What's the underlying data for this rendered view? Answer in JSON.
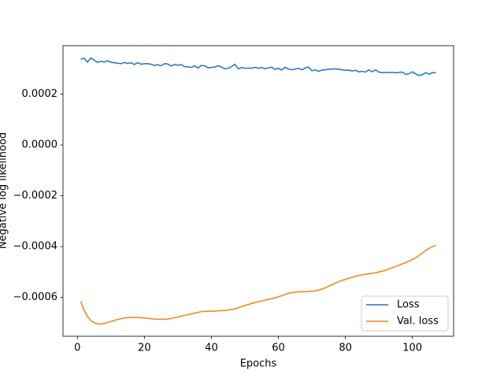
{
  "chart_data": {
    "type": "line",
    "ylabel": "Negative log likelihood",
    "xlabel": "Epochs",
    "x": [
      1,
      2,
      3,
      4,
      5,
      6,
      7,
      8,
      9,
      10,
      11,
      12,
      13,
      14,
      15,
      16,
      17,
      18,
      19,
      20,
      21,
      22,
      23,
      24,
      25,
      26,
      27,
      28,
      29,
      30,
      31,
      32,
      33,
      34,
      35,
      36,
      37,
      38,
      39,
      40,
      41,
      42,
      43,
      44,
      45,
      46,
      47,
      48,
      49,
      50,
      51,
      52,
      53,
      54,
      55,
      56,
      57,
      58,
      59,
      60,
      61,
      62,
      63,
      64,
      65,
      66,
      67,
      68,
      69,
      70,
      71,
      72,
      73,
      74,
      75,
      76,
      77,
      78,
      79,
      80,
      81,
      82,
      83,
      84,
      85,
      86,
      87,
      88,
      89,
      90,
      91,
      92,
      93,
      94,
      95,
      96,
      97,
      98,
      99,
      100,
      101,
      102,
      103,
      104,
      105,
      106,
      107
    ],
    "series": [
      {
        "name": "Loss",
        "color": "#1f77b4",
        "values": [
          0.000338,
          0.000342,
          0.000326,
          0.000343,
          0.000334,
          0.000325,
          0.00033,
          0.000326,
          0.000332,
          0.000326,
          0.000324,
          0.000322,
          0.00032,
          0.000325,
          0.000321,
          0.000324,
          0.000317,
          0.000324,
          0.000318,
          0.00032,
          0.00032,
          0.000318,
          0.000313,
          0.000316,
          0.000312,
          0.00032,
          0.000319,
          0.000311,
          0.000317,
          0.000314,
          0.000317,
          0.000308,
          0.000308,
          0.000305,
          0.000312,
          0.000303,
          0.000313,
          0.000312,
          0.000304,
          0.000305,
          0.000307,
          0.000312,
          0.000307,
          0.0003,
          0.000302,
          0.000308,
          0.000318,
          0.0003,
          0.000305,
          0.000302,
          0.000303,
          0.000302,
          0.000306,
          0.000302,
          0.000305,
          0.0003,
          0.000304,
          0.000306,
          0.000298,
          0.000302,
          0.000295,
          0.000306,
          0.000299,
          0.000296,
          0.000299,
          0.000302,
          0.000296,
          0.000303,
          0.000307,
          0.000292,
          0.000296,
          0.00029,
          0.000295,
          0.000296,
          0.000298,
          0.000299,
          0.0003,
          0.000298,
          0.000296,
          0.000294,
          0.000295,
          0.000291,
          0.000294,
          0.000288,
          0.00029,
          0.000287,
          0.000296,
          0.000288,
          0.000296,
          0.000287,
          0.000285,
          0.000286,
          0.000285,
          0.000286,
          0.000284,
          0.000286,
          0.000287,
          0.000278,
          0.000281,
          0.000288,
          0.00028,
          0.000273,
          0.000277,
          0.000285,
          0.000279,
          0.000285,
          0.000284
        ]
      },
      {
        "name": "Val. loss",
        "color": "#ff7f0e",
        "values": [
          -0.000615,
          -0.00065,
          -0.000675,
          -0.000691,
          -0.0007,
          -0.000704,
          -0.000705,
          -0.000703,
          -0.000699,
          -0.000695,
          -0.000691,
          -0.000687,
          -0.000684,
          -0.000681,
          -0.00068,
          -0.000679,
          -0.000679,
          -0.000679,
          -0.00068,
          -0.000681,
          -0.000682,
          -0.000684,
          -0.000685,
          -0.000686,
          -0.000686,
          -0.000686,
          -0.000685,
          -0.000683,
          -0.00068,
          -0.000677,
          -0.000674,
          -0.000671,
          -0.000668,
          -0.000665,
          -0.000662,
          -0.000659,
          -0.000656,
          -0.000655,
          -0.000655,
          -0.000654,
          -0.000654,
          -0.000653,
          -0.000652,
          -0.000651,
          -0.00065,
          -0.000648,
          -0.000645,
          -0.000641,
          -0.000636,
          -0.000632,
          -0.000628,
          -0.000624,
          -0.00062,
          -0.000617,
          -0.000614,
          -0.000611,
          -0.000608,
          -0.000605,
          -0.000602,
          -0.000598,
          -0.000593,
          -0.000588,
          -0.000584,
          -0.000581,
          -0.000579,
          -0.000578,
          -0.000578,
          -0.000578,
          -0.000577,
          -0.000576,
          -0.000574,
          -0.000571,
          -0.000567,
          -0.000562,
          -0.000556,
          -0.00055,
          -0.000544,
          -0.000538,
          -0.000533,
          -0.000529,
          -0.000525,
          -0.000521,
          -0.000517,
          -0.000514,
          -0.000511,
          -0.000509,
          -0.000507,
          -0.000505,
          -0.000503,
          -0.0005,
          -0.000497,
          -0.000493,
          -0.000488,
          -0.000483,
          -0.000478,
          -0.000473,
          -0.000468,
          -0.000463,
          -0.000457,
          -0.000451,
          -0.000444,
          -0.000435,
          -0.000425,
          -0.000415,
          -0.000407,
          -0.0004,
          -0.000395
        ]
      }
    ],
    "xlim": [
      -4.3,
      112.3
    ],
    "xticks": [
      0,
      20,
      40,
      60,
      80,
      100
    ],
    "ylim": [
      -0.000753,
      0.000391
    ],
    "yticks": [
      {
        "value": -0.0006,
        "label": "−0.0006"
      },
      {
        "value": -0.0004,
        "label": "−0.0004"
      },
      {
        "value": -0.0002,
        "label": "−0.0002"
      },
      {
        "value": 0,
        "label": "0.0000"
      },
      {
        "value": 0.0002,
        "label": "0.0002"
      }
    ],
    "legend": "lower right"
  }
}
